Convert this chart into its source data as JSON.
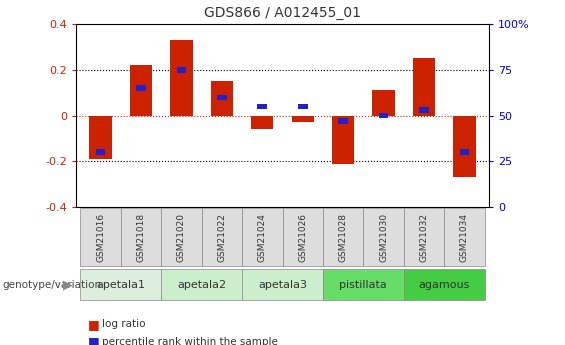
{
  "title": "GDS866 / A012455_01",
  "samples": [
    "GSM21016",
    "GSM21018",
    "GSM21020",
    "GSM21022",
    "GSM21024",
    "GSM21026",
    "GSM21028",
    "GSM21030",
    "GSM21032",
    "GSM21034"
  ],
  "log_ratio": [
    -0.19,
    0.22,
    0.33,
    0.15,
    -0.06,
    -0.03,
    -0.21,
    0.11,
    0.25,
    -0.27
  ],
  "percentile": [
    30,
    65,
    75,
    60,
    55,
    55,
    47,
    50,
    53,
    30
  ],
  "ylim": [
    -0.4,
    0.4
  ],
  "yticks_left": [
    -0.4,
    -0.2,
    0.0,
    0.2,
    0.4
  ],
  "yticks_right": [
    0,
    25,
    50,
    75,
    100
  ],
  "hlines": [
    0.2,
    0.0,
    -0.2
  ],
  "bar_color": "#CC2200",
  "pct_color": "#2222CC",
  "bar_width": 0.55,
  "groups": [
    {
      "label": "apetala1",
      "indices": [
        0,
        1
      ],
      "color": "#DDEEDD"
    },
    {
      "label": "apetala2",
      "indices": [
        2,
        3
      ],
      "color": "#CCEECC"
    },
    {
      "label": "apetala3",
      "indices": [
        4,
        5
      ],
      "color": "#CCEECC"
    },
    {
      "label": "pistillata",
      "indices": [
        6,
        7
      ],
      "color": "#66DD66"
    },
    {
      "label": "agamous",
      "indices": [
        8,
        9
      ],
      "color": "#44CC44"
    }
  ],
  "sample_box_color": "#DDDDDD",
  "group_label": "genotype/variation",
  "legend_log_ratio": "log ratio",
  "legend_pct": "percentile rank within the sample",
  "title_color": "#333333",
  "left_tick_color": "#CC2200",
  "right_tick_color": "#0000CC",
  "hline_zero_color": "#CC2200",
  "hline_other_color": "#000000",
  "bg_color": "#FFFFFF"
}
